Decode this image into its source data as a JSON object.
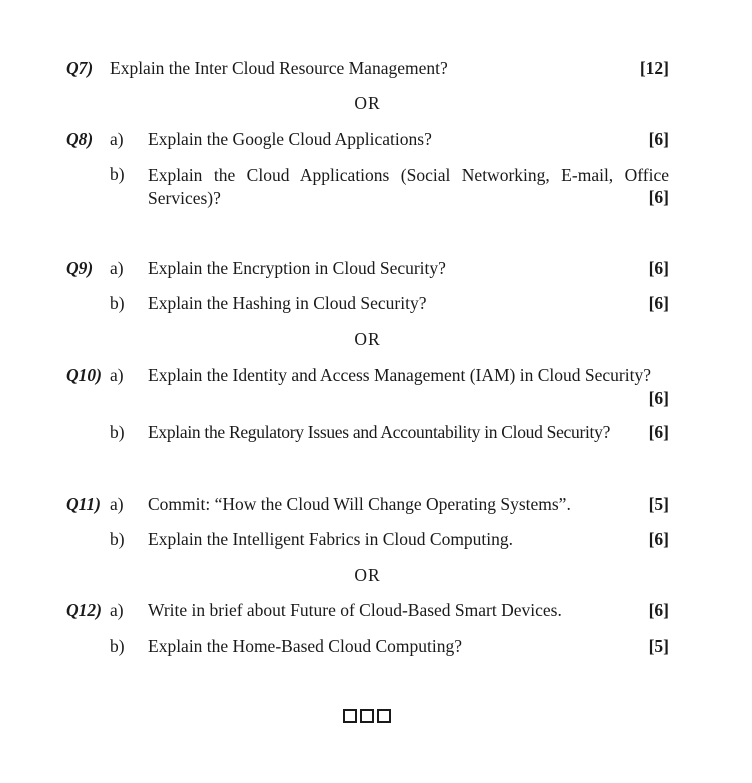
{
  "or_label": "OR",
  "questions": [
    {
      "num": "Q7)",
      "text": "Explain the Inter Cloud Resource Management?",
      "marks": "[12]"
    },
    {
      "num": "Q8)",
      "sub": "a)",
      "text": "Explain the Google Cloud Applications?",
      "marks": "[6]"
    },
    {
      "sub": "b)",
      "text": "Explain the Cloud Applications (Social Networking, E-mail, Office Services)?",
      "marks": "[6]"
    },
    {
      "num": "Q9)",
      "sub": "a)",
      "text": "Explain the Encryption in Cloud Security?",
      "marks": "[6]"
    },
    {
      "sub": "b)",
      "text": "Explain the Hashing in Cloud Security?",
      "marks": "[6]"
    },
    {
      "num": "Q10)",
      "sub": "a)",
      "text": "Explain the Identity and Access Management (IAM) in Cloud Security?",
      "marks": "[6]"
    },
    {
      "sub": "b)",
      "text": "Explain the Regulatory Issues and Accountability in Cloud Security?",
      "marks": "[6]"
    },
    {
      "num": "Q11)",
      "sub": "a)",
      "text": "Commit: “How the Cloud Will Change Operating Systems”.",
      "marks": "[5]"
    },
    {
      "sub": "b)",
      "text": "Explain the Intelligent Fabrics in Cloud Computing.",
      "marks": "[6]"
    },
    {
      "num": "Q12)",
      "sub": "a)",
      "text": "Write in brief about Future of Cloud-Based Smart Devices.",
      "marks": "[6]"
    },
    {
      "sub": "b)",
      "text": "Explain the Home-Based Cloud Computing?",
      "marks": "[5]"
    }
  ]
}
